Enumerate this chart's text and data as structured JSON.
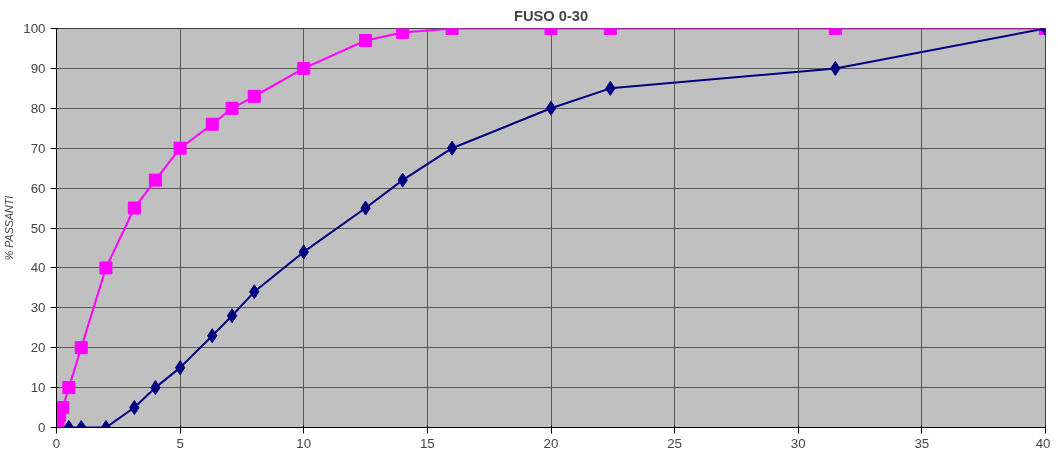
{
  "chart_data": {
    "type": "line",
    "title": "FUSO 0-30",
    "ylabel": "% PASSANTI",
    "xlim": [
      0,
      40
    ],
    "xticks": [
      0,
      5,
      10,
      15,
      20,
      25,
      30,
      35,
      40
    ],
    "ylim": [
      0,
      100
    ],
    "yticks": [
      0,
      10,
      20,
      30,
      40,
      50,
      60,
      70,
      80,
      90,
      100
    ],
    "grid": true,
    "series": [
      {
        "color": "#ff00ff",
        "marker": "square",
        "x": [
          0.063,
          0.125,
          0.25,
          0.5,
          1,
          2,
          3.15,
          4,
          5,
          6.3,
          7.1,
          8,
          10,
          12.5,
          14,
          16,
          20,
          22.4,
          31.5,
          40
        ],
        "values": [
          0,
          3,
          5,
          10,
          20,
          40,
          55,
          62,
          70,
          76,
          80,
          83,
          90,
          97,
          99,
          100,
          100,
          100,
          100,
          100
        ]
      },
      {
        "color": "#000080",
        "marker": "diamond",
        "x": [
          0.5,
          1,
          2,
          3.15,
          4,
          5,
          6.3,
          7.1,
          8,
          10,
          12.5,
          14,
          16,
          20,
          22.4,
          31.5,
          40
        ],
        "values": [
          0,
          0,
          0,
          5,
          10,
          15,
          23,
          28,
          34,
          44,
          55,
          62,
          70,
          80,
          85,
          90,
          100
        ]
      }
    ]
  }
}
